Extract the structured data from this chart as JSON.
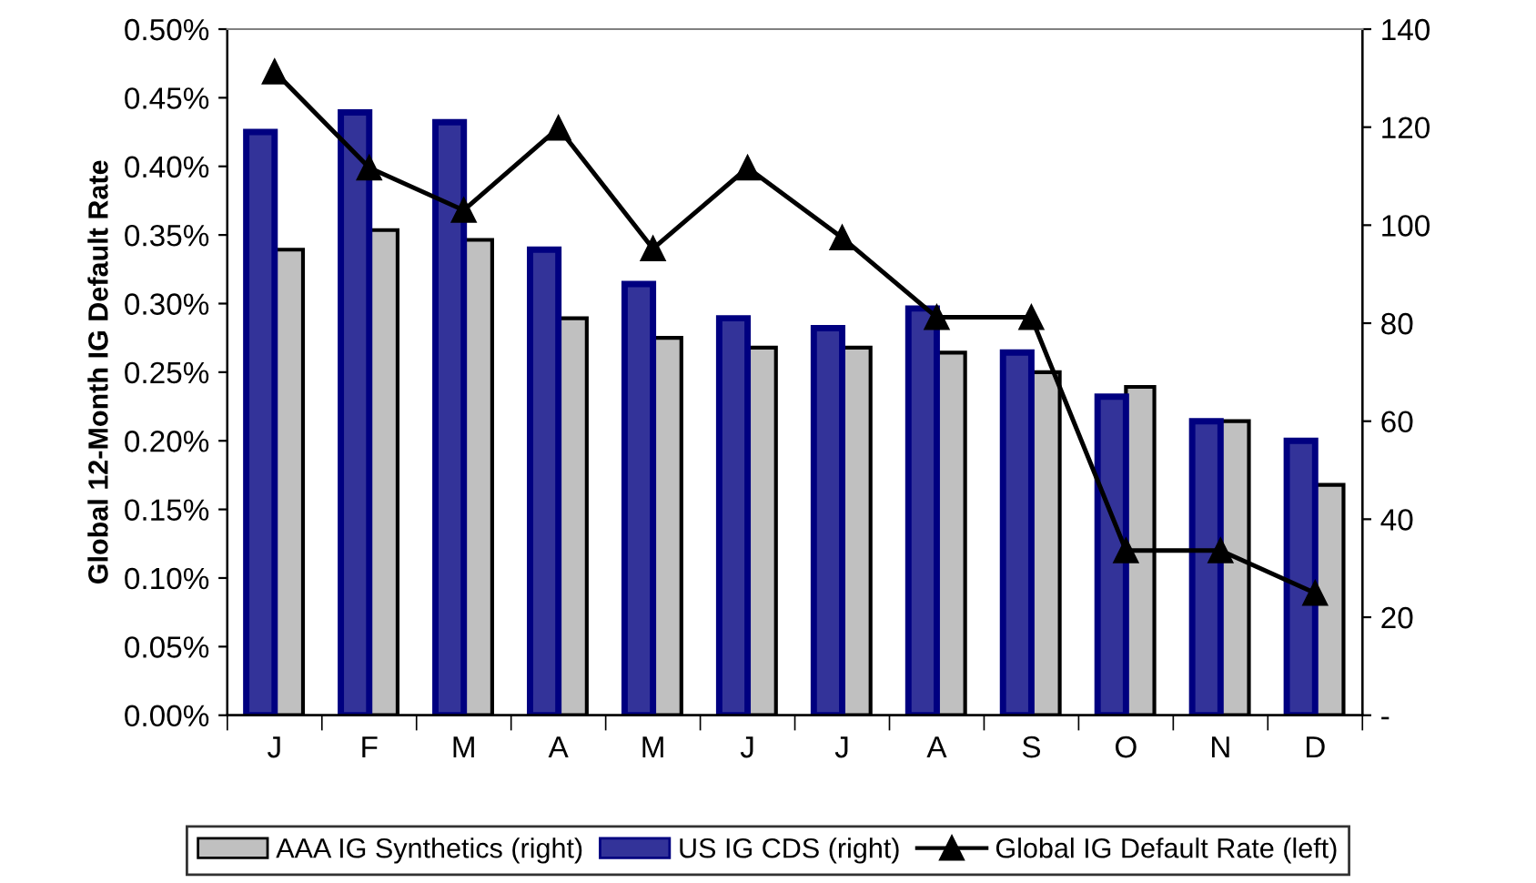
{
  "chart_data": {
    "type": "bar",
    "ylabel": "Global 12-Month IG Default Rate",
    "categories": [
      "J",
      "F",
      "M",
      "A",
      "M",
      "J",
      "J",
      "A",
      "S",
      "O",
      "N",
      "D"
    ],
    "series": [
      {
        "name": "AAA IG Synthetics (right)",
        "axis": "y2",
        "color": "#c0c0c0",
        "values": [
          95,
          99,
          97,
          81,
          77,
          75,
          75,
          74,
          70,
          67,
          60,
          47
        ]
      },
      {
        "name": "US IG CDS (right)",
        "axis": "y2",
        "color": "#333399",
        "values": [
          119,
          123,
          121,
          95,
          88,
          81,
          79,
          83,
          74,
          65,
          60,
          56
        ]
      },
      {
        "name": "Global IG Default Rate (left)",
        "type": "line",
        "axis": "y",
        "color": "#000000",
        "marker": "triangle",
        "values": [
          0.469,
          0.399,
          0.368,
          0.428,
          0.34,
          0.399,
          0.348,
          0.29,
          0.29,
          0.12,
          0.12,
          0.089
        ]
      }
    ],
    "ylim": [
      0,
      0.5
    ],
    "yticks": [
      {
        "value": 0,
        "label": "0.00%"
      },
      {
        "value": 0.05,
        "label": "0.05%"
      },
      {
        "value": 0.1,
        "label": "0.10%"
      },
      {
        "value": 0.15,
        "label": "0.15%"
      },
      {
        "value": 0.2,
        "label": "0.20%"
      },
      {
        "value": 0.25,
        "label": "0.25%"
      },
      {
        "value": 0.3,
        "label": "0.30%"
      },
      {
        "value": 0.35,
        "label": "0.35%"
      },
      {
        "value": 0.4,
        "label": "0.40%"
      },
      {
        "value": 0.45,
        "label": "0.45%"
      },
      {
        "value": 0.5,
        "label": "0.50%"
      }
    ],
    "y2lim": [
      0,
      140
    ],
    "y2ticks": [
      {
        "value": 0,
        "label": "-"
      },
      20,
      40,
      60,
      80,
      100,
      120,
      140
    ],
    "grid": false,
    "legend": "bottom"
  }
}
